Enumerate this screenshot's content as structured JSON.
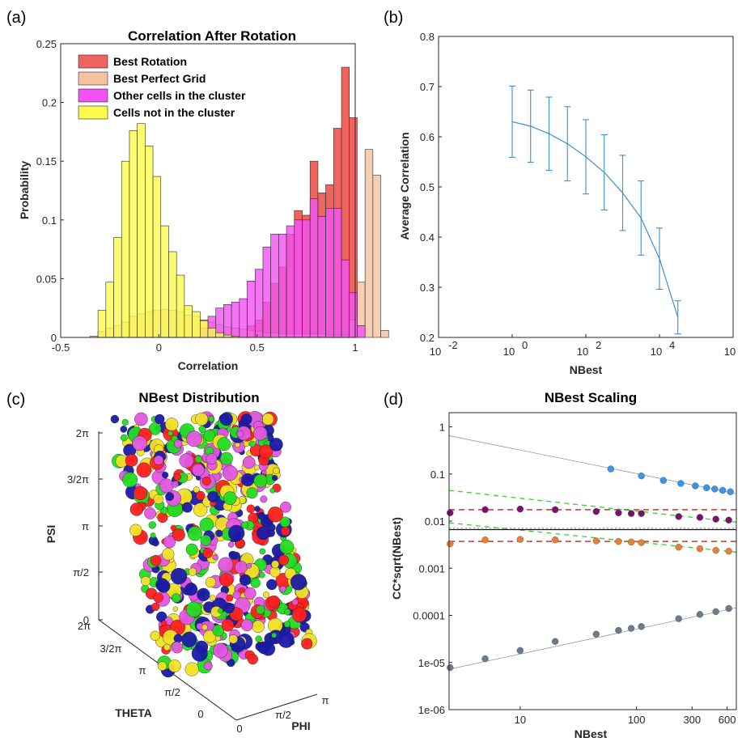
{
  "chart_data": [
    {
      "panel": "(a)",
      "type": "bar",
      "title": "Correlation After Rotation",
      "xlabel": "Correlation",
      "ylabel": "Probability",
      "xlim": [
        -0.5,
        1
      ],
      "ylim": [
        0,
        0.25
      ],
      "xticks": [
        "-0.5",
        "0",
        "0.5",
        "1"
      ],
      "yticks": [
        "0",
        "0.05",
        "0.1",
        "0.15",
        "0.2",
        "0.25"
      ],
      "legend_position": "top-left",
      "bin_start": -0.35,
      "bin_width": 0.04,
      "series": [
        {
          "name": "Best Rotation",
          "color": "#f0645f",
          "values": [
            0,
            0,
            0,
            0,
            0,
            0,
            0,
            0,
            0,
            0,
            0,
            0,
            0,
            0,
            0,
            0,
            0,
            0,
            0,
            0,
            0.01,
            0.015,
            0.03,
            0.046,
            0.06,
            0.088,
            0.108,
            0.104,
            0.15,
            0.123,
            0.13,
            0.178,
            0.23,
            0.187,
            0,
            0,
            0,
            0
          ]
        },
        {
          "name": "Best Perfect Grid",
          "color": "#f4c29e",
          "values": [
            0.001,
            0.005,
            0.008,
            0.01,
            0.013,
            0.018,
            0.02,
            0.022,
            0.023,
            0.024,
            0.023,
            0.022,
            0.019,
            0.018,
            0.015,
            0.013,
            0.011,
            0.009,
            0.008,
            0.007,
            0.006,
            0.005,
            0.004,
            0.004,
            0.003,
            0.003,
            0.003,
            0.003,
            0.003,
            0.003,
            0.002,
            0.002,
            0.002,
            0.015,
            0.047,
            0.16,
            0.138,
            0.006
          ]
        },
        {
          "name": "Other cells in the cluster",
          "color": "#f351f3",
          "values": [
            0,
            0,
            0,
            0,
            0,
            0,
            0,
            0,
            0,
            0,
            0,
            0,
            0,
            0,
            0.008,
            0.018,
            0.025,
            0.028,
            0.03,
            0.033,
            0.048,
            0.058,
            0.077,
            0.088,
            0.088,
            0.095,
            0.1,
            0.1,
            0.118,
            0.103,
            0.11,
            0.11,
            0.066,
            0.038,
            0.01,
            0,
            0,
            0
          ]
        },
        {
          "name": "Cells not in the cluster",
          "color": "#fbfb4d",
          "values": [
            0,
            0.023,
            0.047,
            0.085,
            0.15,
            0.176,
            0.182,
            0.163,
            0.137,
            0.095,
            0.073,
            0.053,
            0.027,
            0.022,
            0.014,
            0.008,
            0.004,
            0.002,
            0.001,
            0,
            0,
            0,
            0,
            0,
            0,
            0,
            0,
            0,
            0,
            0,
            0,
            0,
            0,
            0,
            0,
            0,
            0,
            0
          ]
        }
      ]
    },
    {
      "panel": "(b)",
      "type": "line",
      "title": "",
      "xlabel": "NBest",
      "ylabel": "Average Correlation",
      "xscale": "log",
      "xlim": [
        0.01,
        1000000
      ],
      "ylim": [
        0.2,
        0.8
      ],
      "xticks": [
        "10",
        "10",
        "10",
        "10",
        "10"
      ],
      "xtick_exponents": [
        "-2",
        "0",
        "2",
        "4",
        "6"
      ],
      "yticks": [
        "0.2",
        "0.3",
        "0.4",
        "0.5",
        "0.6",
        "0.7",
        "0.8"
      ],
      "color": "#3d8fd0",
      "x": [
        1,
        3.16,
        10,
        31.6,
        100,
        316,
        1000,
        3160,
        10000,
        31600
      ],
      "y": [
        0.63,
        0.621,
        0.606,
        0.586,
        0.56,
        0.529,
        0.488,
        0.438,
        0.357,
        0.24
      ],
      "err": [
        0.071,
        0.072,
        0.073,
        0.074,
        0.074,
        0.075,
        0.075,
        0.074,
        0.061,
        0.033
      ]
    },
    {
      "panel": "(c)",
      "type": "scatter",
      "title": "NBest Distribution",
      "xlabel": "PHI",
      "ylabel": "PSI",
      "zlabel": "THETA",
      "psi_ticks": [
        "0",
        "π/2",
        "π",
        "3/2π",
        "2π"
      ],
      "theta_ticks": [
        "0",
        "π/2",
        "π",
        "3/2π",
        "2π"
      ],
      "phi_ticks": [
        "0",
        "π/2",
        "π"
      ],
      "colors": [
        "#ff2020",
        "#1a1aa8",
        "#22dd22",
        "#f2e226",
        "#e356e0"
      ]
    },
    {
      "panel": "(d)",
      "type": "scatter",
      "title": "NBest Scaling",
      "xlabel": "NBest",
      "ylabel": "CC*sqrt(NBest)",
      "xscale": "log",
      "yscale": "log",
      "xlim": [
        2.45,
        720
      ],
      "ylim": [
        1e-06,
        2
      ],
      "xticks": [
        "10",
        "100",
        "300",
        "600"
      ],
      "yticks": [
        "1e-06",
        "1e-05",
        "0.0001",
        "0.001",
        "0.01",
        "0.1",
        "1"
      ],
      "series": [
        {
          "color": "#3a94e8",
          "x": [
            60,
            110,
            170,
            240,
            320,
            400,
            470,
            550,
            640
          ],
          "y": [
            0.128,
            0.091,
            0.073,
            0.063,
            0.056,
            0.051,
            0.048,
            0.045,
            0.042
          ]
        },
        {
          "color": "#7b1070",
          "x": [
            2.5,
            5,
            10,
            20,
            45,
            70,
            90,
            110,
            230,
            350,
            480,
            620
          ],
          "y": [
            0.015,
            0.0175,
            0.018,
            0.0175,
            0.016,
            0.015,
            0.0145,
            0.0145,
            0.0125,
            0.012,
            0.011,
            0.0105
          ]
        },
        {
          "color": "#ea7f35",
          "x": [
            2.5,
            5,
            10,
            20,
            45,
            70,
            90,
            110,
            230,
            350,
            480,
            620
          ],
          "y": [
            0.0033,
            0.004,
            0.0041,
            0.004,
            0.0038,
            0.0037,
            0.0036,
            0.0035,
            0.0028,
            0.0026,
            0.0024,
            0.0023
          ]
        },
        {
          "color": "#6a7b8a",
          "x": [
            2.5,
            5,
            10,
            20,
            45,
            70,
            90,
            110,
            230,
            350,
            480,
            620
          ],
          "y": [
            7.8e-06,
            1.2e-05,
            1.8e-05,
            2.8e-05,
            4e-05,
            4.8e-05,
            5.3e-05,
            5.8e-05,
            8.5e-05,
            0.000105,
            0.00012,
            0.00014
          ]
        }
      ],
      "reference_lines": [
        {
          "style": "thin-gray",
          "x": [
            2.45,
            720
          ],
          "y": [
            0.65,
            0.038
          ]
        },
        {
          "style": "thin-gray",
          "x": [
            2.45,
            720
          ],
          "y": [
            7.2e-06,
            0.000145
          ]
        },
        {
          "style": "dashed-red",
          "x": [
            2.45,
            720
          ],
          "y": [
            0.0175,
            0.0175
          ]
        },
        {
          "style": "dashed-red",
          "x": [
            2.45,
            720
          ],
          "y": [
            0.0037,
            0.0037
          ]
        },
        {
          "style": "dashed-green",
          "x": [
            2.45,
            720
          ],
          "y": [
            0.045,
            0.0095
          ]
        },
        {
          "style": "dashed-green",
          "x": [
            2.45,
            720
          ],
          "y": [
            0.0092,
            0.0022
          ]
        },
        {
          "style": "solid-black",
          "x": [
            2.45,
            720
          ],
          "y": [
            0.0066,
            0.0066
          ]
        },
        {
          "style": "dotted-gray",
          "x": [
            2.45,
            720
          ],
          "y": [
            0.0071,
            0.0071
          ]
        }
      ]
    }
  ]
}
